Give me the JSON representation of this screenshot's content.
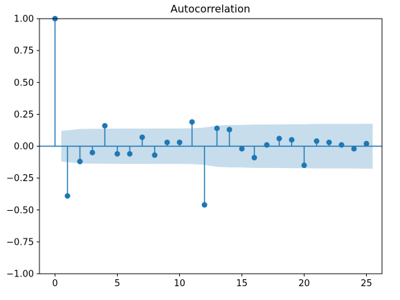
{
  "chart_data": {
    "type": "scatter",
    "subtype": "stem",
    "title": "Autocorrelation",
    "xlabel": "",
    "ylabel": "",
    "xlim": [
      -1.25,
      26.25
    ],
    "ylim": [
      -1.0,
      1.0
    ],
    "x_ticks": [
      0,
      5,
      10,
      15,
      20,
      25
    ],
    "x_tick_labels": [
      "0",
      "5",
      "10",
      "15",
      "20",
      "25"
    ],
    "y_ticks": [
      -1.0,
      -0.75,
      -0.5,
      -0.25,
      0.0,
      0.25,
      0.5,
      0.75,
      1.0
    ],
    "y_tick_labels": [
      "−1.00",
      "−0.75",
      "−0.50",
      "−0.25",
      "0.00",
      "0.25",
      "0.50",
      "0.75",
      "1.00"
    ],
    "grid": false,
    "lags": [
      0,
      1,
      2,
      3,
      4,
      5,
      6,
      7,
      8,
      9,
      10,
      11,
      12,
      13,
      14,
      15,
      16,
      17,
      18,
      19,
      20,
      21,
      22,
      23,
      24,
      25
    ],
    "values": [
      1.0,
      -0.39,
      -0.12,
      -0.05,
      0.16,
      -0.06,
      -0.06,
      0.07,
      -0.07,
      0.03,
      0.03,
      0.19,
      -0.46,
      0.14,
      0.13,
      -0.02,
      -0.09,
      0.01,
      0.06,
      0.05,
      -0.15,
      0.04,
      0.03,
      0.01,
      -0.02,
      0.02
    ],
    "confidence_band": {
      "x": [
        0.5,
        1,
        2,
        3,
        4,
        5,
        6,
        7,
        8,
        9,
        10,
        11,
        12,
        13,
        14,
        15,
        16,
        17,
        18,
        19,
        20,
        21,
        22,
        23,
        24,
        25,
        25.5
      ],
      "upper": [
        0.12,
        0.125,
        0.135,
        0.137,
        0.137,
        0.138,
        0.138,
        0.138,
        0.139,
        0.139,
        0.139,
        0.14,
        0.146,
        0.162,
        0.166,
        0.167,
        0.17,
        0.17,
        0.171,
        0.172,
        0.172,
        0.175,
        0.175,
        0.175,
        0.175,
        0.176,
        0.176
      ],
      "lower": [
        -0.12,
        -0.125,
        -0.135,
        -0.137,
        -0.137,
        -0.138,
        -0.138,
        -0.138,
        -0.139,
        -0.139,
        -0.139,
        -0.14,
        -0.146,
        -0.162,
        -0.166,
        -0.167,
        -0.17,
        -0.17,
        -0.171,
        -0.172,
        -0.172,
        -0.175,
        -0.175,
        -0.175,
        -0.175,
        -0.176,
        -0.176
      ]
    },
    "colors": {
      "stem": "#1f77b4",
      "band": "#1f77b4",
      "axis": "#000000"
    }
  }
}
